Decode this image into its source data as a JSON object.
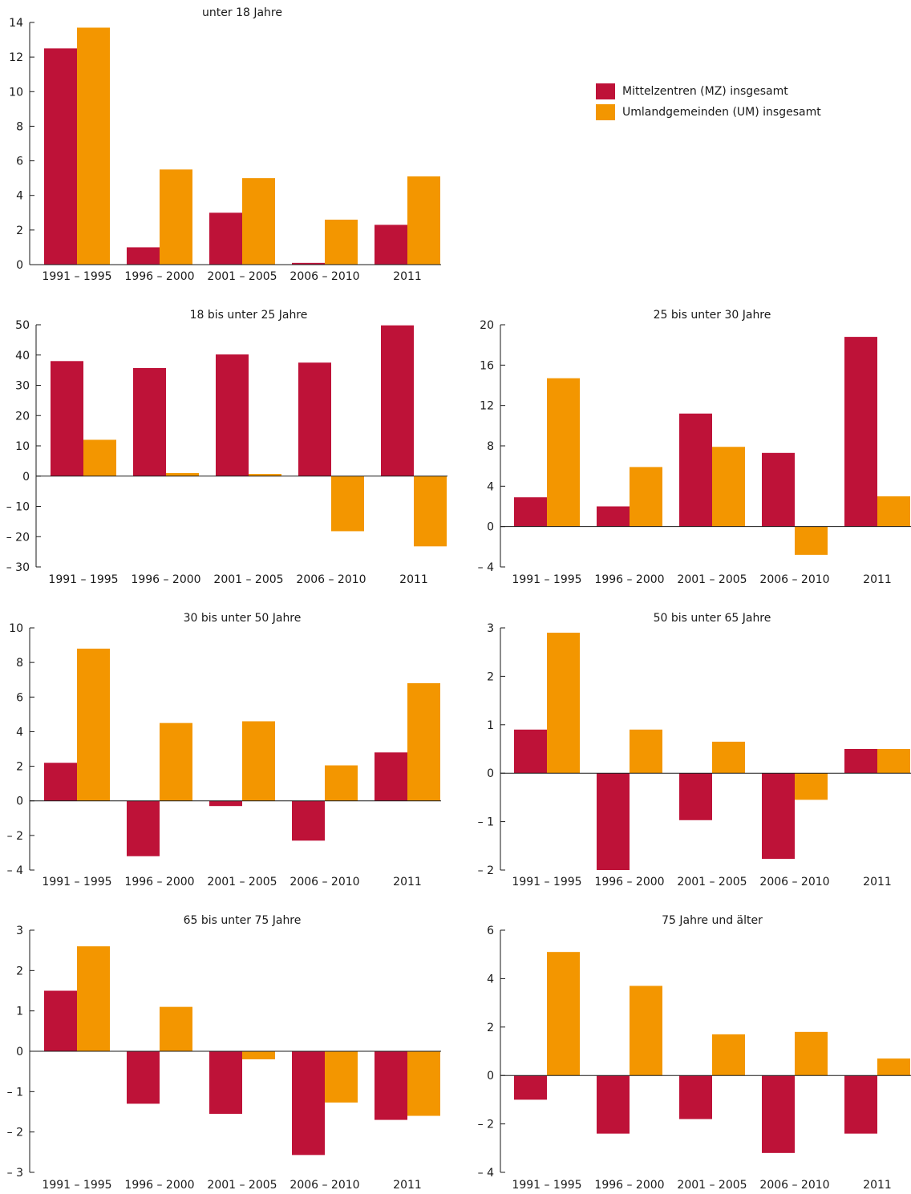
{
  "colors": {
    "mz": "#BE1238",
    "um": "#F39600",
    "axis": "#1a1a1a"
  },
  "legend": {
    "items": [
      {
        "label": "Mittelzentren (MZ) insgesamt",
        "color": "#BE1238"
      },
      {
        "label": "Umlandgemeinden (UM) insgesamt",
        "color": "#F39600"
      }
    ]
  },
  "chart_data": [
    {
      "type": "bar",
      "title": "unter 18 Jahre",
      "categories": [
        "1991 – 1995",
        "1996 – 2000",
        "2001 – 2005",
        "2006 – 2010",
        "2011"
      ],
      "series": [
        {
          "name": "Mittelzentren (MZ) insgesamt",
          "values": [
            12.5,
            1.0,
            3.0,
            0.1,
            2.3
          ]
        },
        {
          "name": "Umlandgemeinden (UM) insgesamt",
          "values": [
            13.7,
            5.5,
            5.0,
            2.6,
            5.1
          ]
        }
      ],
      "ylim": [
        0,
        14
      ],
      "yticks": [
        0,
        2,
        4,
        6,
        8,
        10,
        12,
        14
      ],
      "ytick_labels": [
        "0",
        "2",
        "4",
        "6",
        "8",
        "10",
        "12",
        "14"
      ]
    },
    {
      "type": "bar",
      "title": "18 bis unter 25 Jahre",
      "categories": [
        "1991 – 1995",
        "1996 – 2000",
        "2001 – 2005",
        "2006 – 2010",
        "2011"
      ],
      "series": [
        {
          "name": "Mittelzentren (MZ) insgesamt",
          "values": [
            38,
            35.7,
            40.2,
            37.5,
            49.8
          ]
        },
        {
          "name": "Umlandgemeinden (UM) insgesamt",
          "values": [
            12,
            1,
            0.7,
            -18.2,
            -23.2
          ]
        }
      ],
      "ylim": [
        -30,
        50
      ],
      "yticks": [
        -30,
        -20,
        -10,
        0,
        10,
        20,
        30,
        40,
        50
      ],
      "ytick_labels": [
        "– 30",
        "– 20",
        "– 10",
        "0",
        "10",
        "20",
        "30",
        "40",
        "50"
      ]
    },
    {
      "type": "bar",
      "title": "25 bis unter 30 Jahre",
      "categories": [
        "1991 – 1995",
        "1996 – 2000",
        "2001 – 2005",
        "2006 – 2010",
        "2011"
      ],
      "series": [
        {
          "name": "Mittelzentren (MZ) insgesamt",
          "values": [
            2.9,
            2.0,
            11.2,
            7.3,
            18.8
          ]
        },
        {
          "name": "Umlandgemeinden (UM) insgesamt",
          "values": [
            14.7,
            5.9,
            7.9,
            -2.8,
            3.0
          ]
        }
      ],
      "ylim": [
        -4,
        20
      ],
      "yticks": [
        -4,
        0,
        4,
        8,
        12,
        16,
        20
      ],
      "ytick_labels": [
        "– 4",
        "0",
        "4",
        "8",
        "12",
        "16",
        "20"
      ]
    },
    {
      "type": "bar",
      "title": "30 bis unter 50 Jahre",
      "categories": [
        "1991 – 1995",
        "1996 – 2000",
        "2001 – 2005",
        "2006 – 2010",
        "2011"
      ],
      "series": [
        {
          "name": "Mittelzentren (MZ) insgesamt",
          "values": [
            2.2,
            -3.2,
            -0.3,
            -2.3,
            2.8
          ]
        },
        {
          "name": "Umlandgemeinden (UM) insgesamt",
          "values": [
            8.8,
            4.5,
            4.6,
            2.05,
            6.8
          ]
        }
      ],
      "ylim": [
        -4,
        10
      ],
      "yticks": [
        -4,
        -2,
        0,
        2,
        4,
        6,
        8,
        10
      ],
      "ytick_labels": [
        "– 4",
        "– 2",
        "0",
        "2",
        "4",
        "6",
        "8",
        "10"
      ]
    },
    {
      "type": "bar",
      "title": "50 bis unter 65 Jahre",
      "categories": [
        "1991 – 1995",
        "1996 – 2000",
        "2001 – 2005",
        "2006 – 2010",
        "2011"
      ],
      "series": [
        {
          "name": "Mittelzentren (MZ) insgesamt",
          "values": [
            0.9,
            -2.0,
            -0.97,
            -1.77,
            0.5
          ]
        },
        {
          "name": "Umlandgemeinden (UM) insgesamt",
          "values": [
            2.9,
            0.9,
            0.65,
            -0.55,
            0.5
          ]
        }
      ],
      "ylim": [
        -2,
        3
      ],
      "yticks": [
        -2,
        -1,
        0,
        1,
        2,
        3
      ],
      "ytick_labels": [
        "– 2",
        "– 1",
        "0",
        "1",
        "2",
        "3"
      ]
    },
    {
      "type": "bar",
      "title": "65 bis unter 75 Jahre",
      "categories": [
        "1991 – 1995",
        "1996 – 2000",
        "2001 – 2005",
        "2006 – 2010",
        "2011"
      ],
      "series": [
        {
          "name": "Mittelzentren (MZ) insgesamt",
          "values": [
            1.5,
            -1.3,
            -1.55,
            -2.57,
            -1.7
          ]
        },
        {
          "name": "Umlandgemeinden (UM) insgesamt",
          "values": [
            2.6,
            1.1,
            -0.2,
            -1.27,
            -1.6
          ]
        }
      ],
      "ylim": [
        -3,
        3
      ],
      "yticks": [
        -3,
        -2,
        -1,
        0,
        1,
        2,
        3
      ],
      "ytick_labels": [
        "– 3",
        "– 2",
        "– 1",
        "0",
        "1",
        "2",
        "3"
      ]
    },
    {
      "type": "bar",
      "title": "75 Jahre und älter",
      "categories": [
        "1991 – 1995",
        "1996 – 2000",
        "2001 – 2005",
        "2006 – 2010",
        "2011"
      ],
      "series": [
        {
          "name": "Mittelzentren (MZ) insgesamt",
          "values": [
            -1.0,
            -2.4,
            -1.8,
            -3.2,
            -2.4
          ]
        },
        {
          "name": "Umlandgemeinden (UM) insgesamt",
          "values": [
            5.1,
            3.7,
            1.7,
            1.8,
            0.7
          ]
        }
      ],
      "ylim": [
        -4,
        6
      ],
      "yticks": [
        -4,
        -2,
        0,
        2,
        4,
        6
      ],
      "ytick_labels": [
        "– 4",
        "– 2",
        "0",
        "2",
        "4",
        "6"
      ]
    }
  ]
}
